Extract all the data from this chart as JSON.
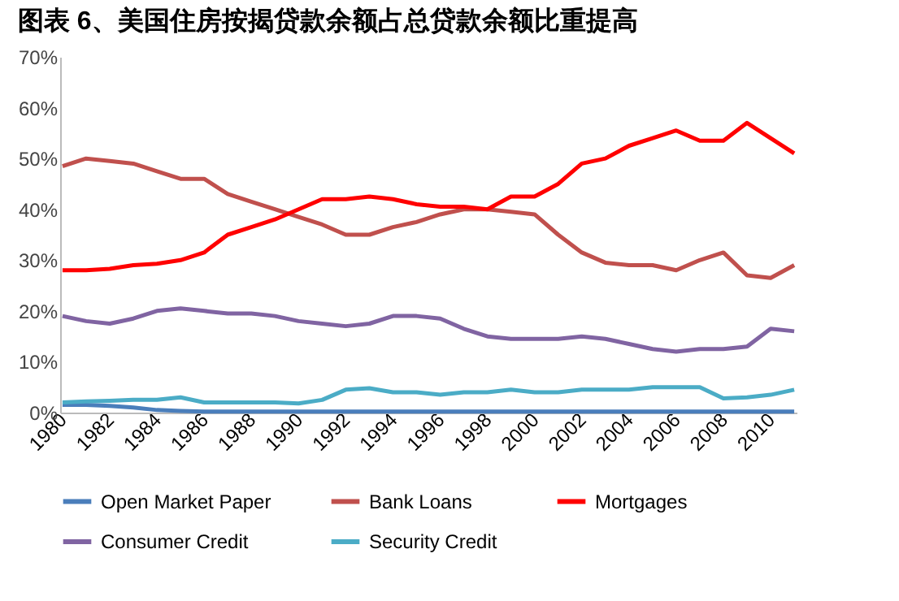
{
  "chart_data": {
    "type": "line",
    "title": "图表 6、美国住房按揭贷款余额占总贷款余额比重提高",
    "categories": [
      "1980",
      null,
      "1982",
      null,
      "1984",
      null,
      "1986",
      null,
      "1988",
      null,
      "1990",
      null,
      "1992",
      null,
      "1994",
      null,
      "1996",
      null,
      "1998",
      null,
      "2000",
      null,
      "2002",
      null,
      "2004",
      null,
      "2006",
      null,
      "2008",
      null,
      "2010",
      null
    ],
    "series": [
      {
        "name": "Open Market Paper",
        "color": "#4a7ebb",
        "values": [
          1.5,
          1.5,
          1.3,
          1,
          0.5,
          0.3,
          0.2,
          0.2,
          0.2,
          0.2,
          0.2,
          0.2,
          0.2,
          0.2,
          0.2,
          0.2,
          0.2,
          0.2,
          0.2,
          0.2,
          0.2,
          0.2,
          0.2,
          0.2,
          0.2,
          0.2,
          0.2,
          0.2,
          0.2,
          0.2,
          0.2,
          0.2
        ]
      },
      {
        "name": "Bank Loans",
        "color": "#c0504d",
        "values": [
          48.5,
          50,
          49.5,
          49,
          47.5,
          46,
          46,
          43,
          41.5,
          40,
          38.5,
          37,
          35,
          35,
          36.5,
          37.5,
          39,
          40,
          40,
          39.5,
          39,
          35,
          31.5,
          29.5,
          29,
          29,
          28,
          30,
          31.5,
          27,
          26.5,
          29
        ]
      },
      {
        "name": "Mortgages",
        "color": "#ff0000",
        "values": [
          28,
          28,
          28.3,
          29,
          29.3,
          30,
          31.5,
          35,
          36.5,
          38,
          40,
          42,
          42,
          42.5,
          42,
          41,
          40.5,
          40.5,
          40,
          42.5,
          42.5,
          45,
          49,
          50,
          52.5,
          54,
          55.5,
          53.5,
          53.5,
          57,
          54,
          51
        ]
      },
      {
        "name": "Consumer Credit",
        "color": "#8064a2",
        "values": [
          19,
          18,
          17.5,
          18.5,
          20,
          20.5,
          20,
          19.5,
          19.5,
          19,
          18,
          17.5,
          17,
          17.5,
          19,
          19,
          18.5,
          16.5,
          15,
          14.5,
          14.5,
          14.5,
          15,
          14.5,
          13.5,
          12.5,
          12,
          12.5,
          12.5,
          13,
          16.5,
          16
        ]
      },
      {
        "name": "Security Credit",
        "color": "#4bacc6",
        "values": [
          2,
          2.2,
          2.3,
          2.5,
          2.5,
          3,
          2,
          2,
          2,
          2,
          1.8,
          2.5,
          4.5,
          4.8,
          4,
          4,
          3.5,
          4,
          4,
          4.5,
          4,
          4,
          4.5,
          4.5,
          4.5,
          5,
          5,
          5,
          2.8,
          3,
          3.5,
          4.5
        ]
      }
    ],
    "ylim": [
      0,
      70
    ],
    "yticks": [
      {
        "value": 0,
        "label": "0%"
      },
      {
        "value": 10,
        "label": "10%"
      },
      {
        "value": 20,
        "label": "20%"
      },
      {
        "value": 30,
        "label": "30%"
      },
      {
        "value": 40,
        "label": "40%"
      },
      {
        "value": 50,
        "label": "50%"
      },
      {
        "value": 60,
        "label": "60%"
      },
      {
        "value": 70,
        "label": "70%"
      }
    ],
    "grid": false,
    "legend": "bottom"
  }
}
